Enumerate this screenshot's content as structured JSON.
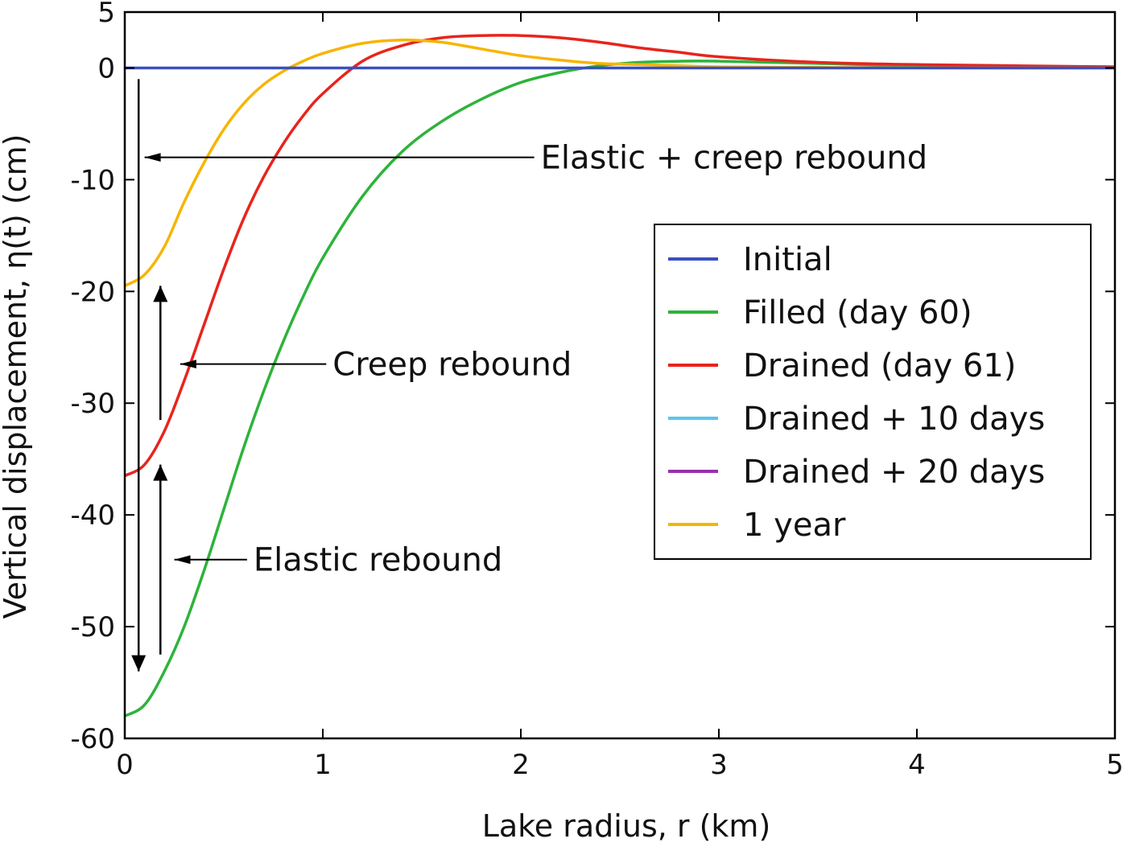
{
  "chart_data": {
    "type": "line",
    "xlabel": "Lake radius, r (km)",
    "ylabel": "Vertical displacement, η(t) (cm)",
    "xlim": [
      0,
      5
    ],
    "ylim": [
      -60,
      5
    ],
    "xticks": [
      0,
      1,
      2,
      3,
      4,
      5
    ],
    "yticks": [
      5,
      0,
      -10,
      -20,
      -30,
      -40,
      -50,
      -60
    ],
    "grid": false,
    "legend_placement": "center-right",
    "series": [
      {
        "name": "Initial",
        "color": "#3a4fc0",
        "x": [
          0,
          5
        ],
        "y": [
          0,
          0
        ]
      },
      {
        "name": "Filled (day 60)",
        "color": "#2db33a",
        "x": [
          0,
          0.1,
          0.2,
          0.3,
          0.4,
          0.5,
          0.6,
          0.7,
          0.8,
          0.9,
          1.0,
          1.2,
          1.4,
          1.6,
          1.8,
          2.0,
          2.2,
          2.4,
          2.6,
          2.8,
          3.0,
          3.5,
          4.0,
          5.0
        ],
        "y": [
          -58,
          -57,
          -54,
          -50,
          -45,
          -39.5,
          -34,
          -29,
          -24.5,
          -20.5,
          -17,
          -11.5,
          -7.5,
          -4.8,
          -2.8,
          -1.3,
          -0.4,
          0.2,
          0.5,
          0.6,
          0.6,
          0.4,
          0.2,
          0.1
        ]
      },
      {
        "name": "Drained (day 61)",
        "color": "#e8241c",
        "x": [
          0,
          0.1,
          0.2,
          0.3,
          0.4,
          0.5,
          0.6,
          0.7,
          0.8,
          0.9,
          1.0,
          1.2,
          1.4,
          1.6,
          1.8,
          2.0,
          2.2,
          2.4,
          2.6,
          2.8,
          3.0,
          3.5,
          4.0,
          5.0
        ],
        "y": [
          -36.5,
          -35.5,
          -32.5,
          -28,
          -23,
          -18,
          -13.5,
          -9.8,
          -6.8,
          -4.3,
          -2.3,
          0.6,
          2.0,
          2.7,
          2.9,
          2.9,
          2.7,
          2.3,
          1.8,
          1.4,
          1.0,
          0.5,
          0.3,
          0.1
        ]
      },
      {
        "name": "Drained + 10 days",
        "color": "#5bc6e8",
        "x": [],
        "y": []
      },
      {
        "name": "Drained + 20 days",
        "color": "#9b2fb0",
        "x": [],
        "y": []
      },
      {
        "name": "1 year",
        "color": "#f7b500",
        "x": [
          0,
          0.1,
          0.2,
          0.3,
          0.4,
          0.5,
          0.6,
          0.7,
          0.8,
          0.9,
          1.0,
          1.2,
          1.4,
          1.6,
          1.8,
          2.0,
          2.2,
          2.4,
          2.6,
          2.8,
          3.0,
          3.5,
          4.0,
          5.0
        ],
        "y": [
          -19.5,
          -18.5,
          -16,
          -12,
          -8.5,
          -5.5,
          -3.2,
          -1.5,
          -0.3,
          0.6,
          1.3,
          2.2,
          2.5,
          2.3,
          1.7,
          1.1,
          0.7,
          0.4,
          0.3,
          0.2,
          0.1,
          0.05,
          0.02,
          0
        ]
      }
    ],
    "annotations": [
      {
        "text": "Elastic + creep rebound",
        "x": 2.1,
        "y": -8,
        "arrow_to": [
          0.1,
          -8
        ]
      },
      {
        "text": "Creep rebound",
        "x": 1.05,
        "y": -26.5,
        "arrow_to": [
          0.28,
          -26.5
        ]
      },
      {
        "text": "Elastic rebound",
        "x": 0.65,
        "y": -44,
        "arrow_to": [
          0.25,
          -44
        ]
      }
    ],
    "vertical_arrows": [
      {
        "x": 0.07,
        "from": -1,
        "to": -54,
        "direction": "down"
      },
      {
        "x": 0.18,
        "from": -52.5,
        "to": -35.5,
        "direction": "up"
      },
      {
        "x": 0.18,
        "from": -31.5,
        "to": -19.5,
        "direction": "up"
      }
    ]
  }
}
